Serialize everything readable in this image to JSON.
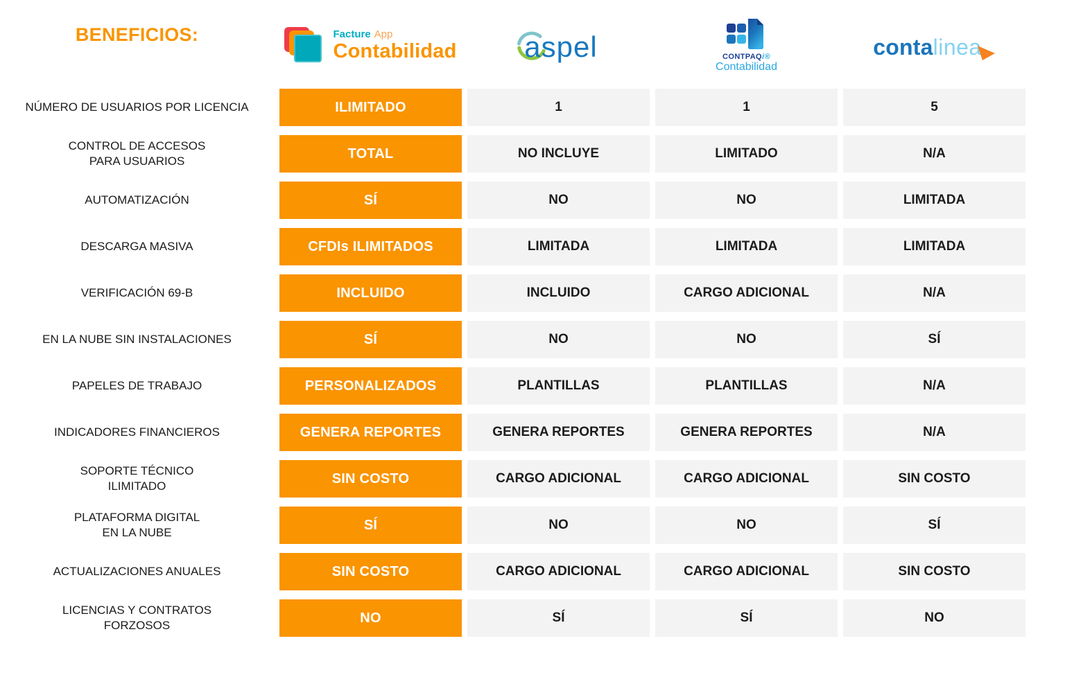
{
  "title": "BENEFICIOS:",
  "brands": {
    "facture": {
      "word1": "Facture",
      "word2": "App",
      "word3": "Contabilidad"
    },
    "aspel": {
      "name": "aspel"
    },
    "contpaqi": {
      "name": "CONTPAQ",
      "name_suffix": "i®",
      "product": "Contabilidad"
    },
    "contalinea": {
      "word1": "conta",
      "word2": "linea"
    }
  },
  "icons": {
    "facture_icon": "stacked-squares",
    "aspel_icon": "circle-swoosh",
    "contpaqi_icon": "document-with-squares",
    "contalinea_icon": "cursor-arrow"
  },
  "colors": {
    "accent_orange": "#FA9400",
    "cell_gray": "#F3F3F3",
    "text_dark": "#1C1C1C",
    "facture_red": "#EE3D4A",
    "facture_teal": "#00A8BA",
    "aspel_blue": "#1878BE",
    "aspel_green": "#8DC63F",
    "contpaqi_navy": "#1B3F94",
    "contpaqi_cyan": "#2BA8E0",
    "contalinea_blue": "#1B75BC",
    "contalinea_light_blue": "#85D2F2"
  },
  "chart_data": {
    "type": "table",
    "title": "BENEFICIOS:",
    "columns": [
      "Facture App Contabilidad",
      "aspel",
      "CONTPAQi Contabilidad",
      "contalinea"
    ],
    "rows": [
      {
        "label_lines": [
          "NÚMERO DE USUARIOS POR LICENCIA"
        ],
        "values": [
          "ILIMITADO",
          "1",
          "1",
          "5"
        ]
      },
      {
        "label_lines": [
          "CONTROL DE ACCESOS",
          "PARA USUARIOS"
        ],
        "values": [
          "TOTAL",
          "NO INCLUYE",
          "LIMITADO",
          "N/A"
        ]
      },
      {
        "label_lines": [
          "AUTOMATIZACIÓN"
        ],
        "values": [
          "SÍ",
          "NO",
          "NO",
          "LIMITADA"
        ]
      },
      {
        "label_lines": [
          "DESCARGA MASIVA"
        ],
        "values": [
          "CFDIs ILIMITADOS",
          "LIMITADA",
          "LIMITADA",
          "LIMITADA"
        ]
      },
      {
        "label_lines": [
          "VERIFICACIÓN 69-B"
        ],
        "values": [
          "INCLUIDO",
          "INCLUIDO",
          "CARGO ADICIONAL",
          "N/A"
        ]
      },
      {
        "label_lines": [
          "EN LA NUBE SIN INSTALACIONES"
        ],
        "values": [
          "SÍ",
          "NO",
          "NO",
          "SÍ"
        ]
      },
      {
        "label_lines": [
          "PAPELES DE TRABAJO"
        ],
        "values": [
          "PERSONALIZADOS",
          "PLANTILLAS",
          "PLANTILLAS",
          "N/A"
        ]
      },
      {
        "label_lines": [
          "INDICADORES FINANCIEROS"
        ],
        "values": [
          "GENERA REPORTES",
          "GENERA REPORTES",
          "GENERA REPORTES",
          "N/A"
        ]
      },
      {
        "label_lines": [
          "SOPORTE TÉCNICO",
          "ILIMITADO"
        ],
        "values": [
          "SIN COSTO",
          "CARGO ADICIONAL",
          "CARGO ADICIONAL",
          "SIN COSTO"
        ]
      },
      {
        "label_lines": [
          "PLATAFORMA DIGITAL",
          "EN LA NUBE"
        ],
        "values": [
          "SÍ",
          "NO",
          "NO",
          "SÍ"
        ]
      },
      {
        "label_lines": [
          "ACTUALIZACIONES ANUALES"
        ],
        "values": [
          "SIN COSTO",
          "CARGO ADICIONAL",
          "CARGO ADICIONAL",
          "SIN COSTO"
        ]
      },
      {
        "label_lines": [
          "LICENCIAS Y CONTRATOS",
          "FORZOSOS"
        ],
        "values": [
          "NO",
          "SÍ",
          "SÍ",
          "NO"
        ]
      }
    ]
  }
}
